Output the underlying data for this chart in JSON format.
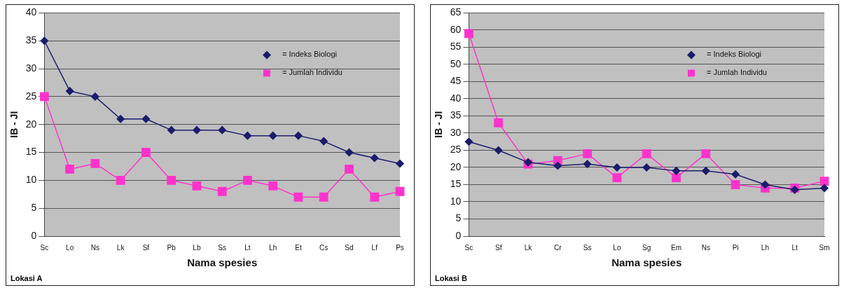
{
  "chart_data": [
    {
      "type": "line",
      "xlabel": "Nama spesies",
      "ylabel": "IB - JI",
      "annotations": [
        "Lokasi A"
      ],
      "categories": [
        "Sc",
        "Lo",
        "Ns",
        "Lk",
        "Sf",
        "Pb",
        "Lb",
        "Ss",
        "Lt",
        "Lh",
        "Et",
        "Cs",
        "Sd",
        "Lf",
        "Ps"
      ],
      "series": [
        {
          "name": "= Indeks Biologi",
          "color": "#1c1c6c",
          "marker": "diamond",
          "values": [
            35,
            26,
            25,
            21,
            21,
            19,
            19,
            19,
            18,
            18,
            18,
            17,
            15,
            14,
            13
          ]
        },
        {
          "name": "= Jumlah Individu",
          "color": "#ff33cc",
          "marker": "square",
          "values": [
            25,
            12,
            13,
            10,
            15,
            10,
            9,
            8,
            10,
            9,
            7,
            7,
            12,
            7,
            8
          ]
        }
      ],
      "ylim": [
        0,
        40
      ],
      "yticks": [
        0,
        5,
        10,
        15,
        20,
        25,
        30,
        35,
        40
      ],
      "grid": "y",
      "legend": "top right"
    },
    {
      "type": "line",
      "xlabel": "Nama spesies",
      "ylabel": "IB - JI",
      "annotations": [
        "Lokasi B"
      ],
      "categories": [
        "Sc",
        "Sf",
        "Lk",
        "Cr",
        "Ss",
        "Lo",
        "Sg",
        "Em",
        "Ns",
        "Pi",
        "Lh",
        "Lt",
        "Sm"
      ],
      "series": [
        {
          "name": "= Indeks Biologi",
          "color": "#1c1c6c",
          "marker": "diamond",
          "values": [
            27.5,
            25,
            21.5,
            20.5,
            21,
            20,
            20,
            19,
            19,
            18,
            15,
            13.5,
            14
          ]
        },
        {
          "name": "= Jumlah Individu",
          "color": "#ff33cc",
          "marker": "square",
          "values": [
            59,
            33,
            21,
            22,
            24,
            17,
            24,
            17,
            24,
            15,
            14,
            14,
            16
          ]
        }
      ],
      "ylim": [
        0,
        65
      ],
      "yticks": [
        0,
        5,
        10,
        15,
        20,
        25,
        30,
        35,
        40,
        45,
        50,
        55,
        60,
        65
      ],
      "grid": "y",
      "legend": "top right"
    }
  ]
}
